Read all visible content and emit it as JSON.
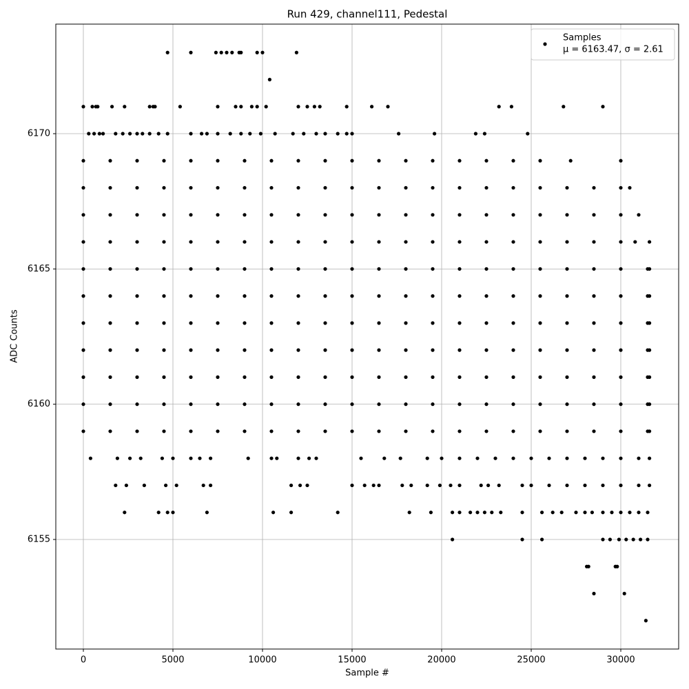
{
  "chart_data": {
    "type": "scatter",
    "title": "Run 429, channel111, Pedestal",
    "x_label": "Sample #",
    "y_label": "ADC Counts",
    "xlim": [
      -1538,
      33231
    ],
    "ylim": [
      6150.95,
      6174.05
    ],
    "xticks": [
      0,
      5000,
      10000,
      15000,
      20000,
      25000,
      30000
    ],
    "yticks": [
      6155,
      6160,
      6165,
      6170
    ],
    "grid": true,
    "legend": "upper right",
    "stats": "μ = 6163.47, σ = 2.61",
    "x": [
      4700,
      6000,
      7400,
      7700,
      8000,
      8300,
      8700,
      8800,
      9700,
      10000,
      11900,
      10400,
      0,
      500,
      700,
      800,
      1600,
      2300,
      3700,
      3900,
      4000,
      5400,
      7500,
      8500,
      8800,
      9400,
      9700,
      10200,
      12000,
      12500,
      12900,
      13200,
      14700,
      16100,
      17000,
      23200,
      23900,
      26800,
      29000,
      300,
      600,
      900,
      1100,
      1800,
      2200,
      2600,
      3000,
      3300,
      3700,
      4200,
      4700,
      6000,
      6600,
      6900,
      7500,
      8200,
      8800,
      9300,
      9900,
      10700,
      11700,
      12300,
      13000,
      13500,
      14200,
      14700,
      15000,
      17600,
      19600,
      21900,
      22400,
      24800,
      0,
      1500,
      3000,
      4500,
      6000,
      7500,
      9000,
      10500,
      12000,
      13500,
      15000,
      16500,
      18000,
      19500,
      21000,
      22500,
      24000,
      25500,
      27200,
      30000,
      0,
      1500,
      3000,
      4500,
      6000,
      7500,
      9000,
      10500,
      12000,
      13500,
      15000,
      16500,
      18000,
      19500,
      21000,
      22500,
      24000,
      25500,
      27000,
      28500,
      30000,
      30500,
      0,
      1500,
      3000,
      4500,
      6000,
      7500,
      9000,
      10500,
      12000,
      13500,
      15000,
      16500,
      18000,
      19500,
      21000,
      22500,
      24000,
      25500,
      27000,
      28500,
      30000,
      31000,
      0,
      1500,
      3000,
      4500,
      6000,
      7500,
      9000,
      10500,
      12000,
      13500,
      15000,
      16500,
      18000,
      19500,
      21000,
      22500,
      24000,
      25500,
      27000,
      28500,
      30000,
      30800,
      31600,
      0,
      1500,
      3000,
      4500,
      6000,
      7500,
      9000,
      10500,
      12000,
      13500,
      15000,
      16500,
      18000,
      19500,
      21000,
      22500,
      24000,
      25500,
      27000,
      28500,
      30000,
      31500,
      31600,
      0,
      1500,
      3000,
      4500,
      6000,
      7500,
      9000,
      10500,
      12000,
      13500,
      15000,
      16500,
      18000,
      19500,
      21000,
      22500,
      24000,
      25500,
      27000,
      28500,
      30000,
      31500,
      31600,
      0,
      1500,
      3000,
      4500,
      6000,
      7500,
      9000,
      10500,
      12000,
      13500,
      15000,
      16500,
      18000,
      19500,
      21000,
      22500,
      24000,
      25500,
      27000,
      28500,
      30000,
      31500,
      31600,
      0,
      1500,
      3000,
      4500,
      6000,
      7500,
      9000,
      10500,
      12000,
      13500,
      15000,
      16500,
      18000,
      19500,
      21000,
      22500,
      24000,
      25500,
      27000,
      28500,
      30000,
      31500,
      31600,
      0,
      1500,
      3000,
      4500,
      6000,
      7500,
      9000,
      10500,
      12000,
      13500,
      15000,
      16500,
      18000,
      19500,
      21000,
      22500,
      24000,
      25500,
      27000,
      28500,
      30000,
      31500,
      31600,
      0,
      1500,
      3000,
      4500,
      6000,
      7500,
      9000,
      10500,
      12000,
      13500,
      15000,
      16500,
      18000,
      19500,
      21000,
      22500,
      24000,
      25500,
      27000,
      28500,
      30000,
      31500,
      31600,
      0,
      1500,
      3000,
      4500,
      6000,
      7500,
      9000,
      10500,
      12000,
      13500,
      15000,
      16500,
      18000,
      19500,
      21000,
      22500,
      24000,
      25500,
      27000,
      28500,
      30000,
      31500,
      31600,
      400,
      1900,
      2600,
      3200,
      4400,
      5000,
      6000,
      6500,
      7100,
      9200,
      10500,
      10800,
      12000,
      12600,
      13000,
      15500,
      16800,
      17700,
      19200,
      20000,
      21000,
      22000,
      23000,
      24000,
      25000,
      26000,
      27000,
      28000,
      29000,
      30000,
      31000,
      31600,
      1800,
      2400,
      3400,
      4600,
      5200,
      6700,
      7100,
      11600,
      12100,
      12500,
      15000,
      15700,
      16200,
      16500,
      17800,
      18300,
      19200,
      19900,
      20500,
      21000,
      22200,
      22600,
      23200,
      24500,
      25000,
      26000,
      27000,
      28000,
      29000,
      30000,
      31000,
      31600,
      2300,
      4200,
      4700,
      5000,
      6900,
      10600,
      11600,
      14200,
      18200,
      19400,
      20600,
      21000,
      21600,
      22000,
      22400,
      22800,
      23300,
      24500,
      25600,
      26200,
      26700,
      27500,
      28000,
      28400,
      29000,
      29500,
      30000,
      30500,
      31000,
      31500,
      20600,
      24500,
      25600,
      29000,
      29400,
      29900,
      30300,
      30700,
      31100,
      31500,
      28100,
      28200,
      29700,
      29800,
      28500,
      30200,
      31400
    ],
    "series": [
      {
        "name": "Samples",
        "color": "#000000",
        "values": [
          6173,
          6173,
          6173,
          6173,
          6173,
          6173,
          6173,
          6173,
          6173,
          6173,
          6173,
          6172,
          6171,
          6171,
          6171,
          6171,
          6171,
          6171,
          6171,
          6171,
          6171,
          6171,
          6171,
          6171,
          6171,
          6171,
          6171,
          6171,
          6171,
          6171,
          6171,
          6171,
          6171,
          6171,
          6171,
          6171,
          6171,
          6171,
          6171,
          6170,
          6170,
          6170,
          6170,
          6170,
          6170,
          6170,
          6170,
          6170,
          6170,
          6170,
          6170,
          6170,
          6170,
          6170,
          6170,
          6170,
          6170,
          6170,
          6170,
          6170,
          6170,
          6170,
          6170,
          6170,
          6170,
          6170,
          6170,
          6170,
          6170,
          6170,
          6170,
          6170,
          6169,
          6169,
          6169,
          6169,
          6169,
          6169,
          6169,
          6169,
          6169,
          6169,
          6169,
          6169,
          6169,
          6169,
          6169,
          6169,
          6169,
          6169,
          6169,
          6169,
          6168,
          6168,
          6168,
          6168,
          6168,
          6168,
          6168,
          6168,
          6168,
          6168,
          6168,
          6168,
          6168,
          6168,
          6168,
          6168,
          6168,
          6168,
          6168,
          6168,
          6168,
          6168,
          6167,
          6167,
          6167,
          6167,
          6167,
          6167,
          6167,
          6167,
          6167,
          6167,
          6167,
          6167,
          6167,
          6167,
          6167,
          6167,
          6167,
          6167,
          6167,
          6167,
          6167,
          6167,
          6166,
          6166,
          6166,
          6166,
          6166,
          6166,
          6166,
          6166,
          6166,
          6166,
          6166,
          6166,
          6166,
          6166,
          6166,
          6166,
          6166,
          6166,
          6166,
          6166,
          6166,
          6166,
          6166,
          6165,
          6165,
          6165,
          6165,
          6165,
          6165,
          6165,
          6165,
          6165,
          6165,
          6165,
          6165,
          6165,
          6165,
          6165,
          6165,
          6165,
          6165,
          6165,
          6165,
          6165,
          6165,
          6165,
          6164,
          6164,
          6164,
          6164,
          6164,
          6164,
          6164,
          6164,
          6164,
          6164,
          6164,
          6164,
          6164,
          6164,
          6164,
          6164,
          6164,
          6164,
          6164,
          6164,
          6164,
          6164,
          6164,
          6163,
          6163,
          6163,
          6163,
          6163,
          6163,
          6163,
          6163,
          6163,
          6163,
          6163,
          6163,
          6163,
          6163,
          6163,
          6163,
          6163,
          6163,
          6163,
          6163,
          6163,
          6163,
          6163,
          6162,
          6162,
          6162,
          6162,
          6162,
          6162,
          6162,
          6162,
          6162,
          6162,
          6162,
          6162,
          6162,
          6162,
          6162,
          6162,
          6162,
          6162,
          6162,
          6162,
          6162,
          6162,
          6162,
          6161,
          6161,
          6161,
          6161,
          6161,
          6161,
          6161,
          6161,
          6161,
          6161,
          6161,
          6161,
          6161,
          6161,
          6161,
          6161,
          6161,
          6161,
          6161,
          6161,
          6161,
          6161,
          6161,
          6160,
          6160,
          6160,
          6160,
          6160,
          6160,
          6160,
          6160,
          6160,
          6160,
          6160,
          6160,
          6160,
          6160,
          6160,
          6160,
          6160,
          6160,
          6160,
          6160,
          6160,
          6160,
          6160,
          6159,
          6159,
          6159,
          6159,
          6159,
          6159,
          6159,
          6159,
          6159,
          6159,
          6159,
          6159,
          6159,
          6159,
          6159,
          6159,
          6159,
          6159,
          6159,
          6159,
          6159,
          6159,
          6159,
          6158,
          6158,
          6158,
          6158,
          6158,
          6158,
          6158,
          6158,
          6158,
          6158,
          6158,
          6158,
          6158,
          6158,
          6158,
          6158,
          6158,
          6158,
          6158,
          6158,
          6158,
          6158,
          6158,
          6158,
          6158,
          6158,
          6158,
          6158,
          6158,
          6158,
          6158,
          6158,
          6157,
          6157,
          6157,
          6157,
          6157,
          6157,
          6157,
          6157,
          6157,
          6157,
          6157,
          6157,
          6157,
          6157,
          6157,
          6157,
          6157,
          6157,
          6157,
          6157,
          6157,
          6157,
          6157,
          6157,
          6157,
          6157,
          6157,
          6157,
          6157,
          6157,
          6157,
          6157,
          6156,
          6156,
          6156,
          6156,
          6156,
          6156,
          6156,
          6156,
          6156,
          6156,
          6156,
          6156,
          6156,
          6156,
          6156,
          6156,
          6156,
          6156,
          6156,
          6156,
          6156,
          6156,
          6156,
          6156,
          6156,
          6156,
          6156,
          6156,
          6156,
          6156,
          6155,
          6155,
          6155,
          6155,
          6155,
          6155,
          6155,
          6155,
          6155,
          6155,
          6154,
          6154,
          6154,
          6154,
          6153,
          6153,
          6152
        ]
      }
    ]
  }
}
